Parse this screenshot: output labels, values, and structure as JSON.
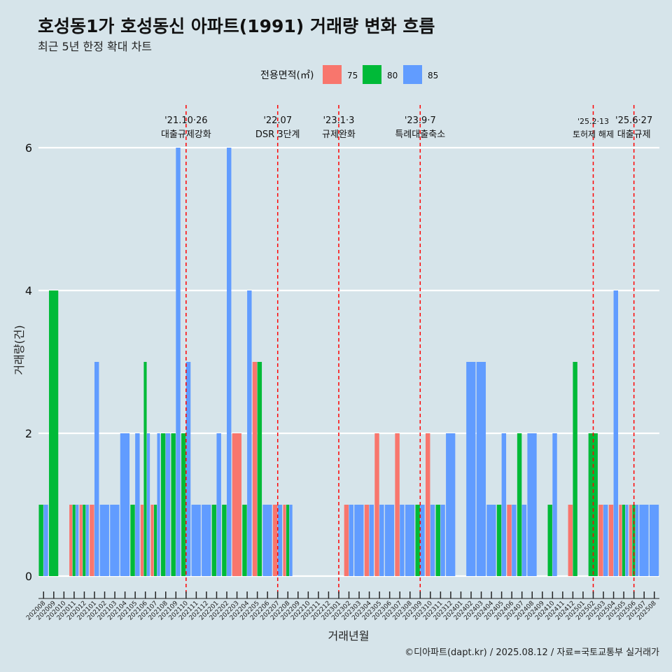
{
  "title": "호성동1가 호성동신 아파트(1991) 거래량 변화 흐름",
  "subtitle": "최근 5년 한정 확대 차트",
  "caption": "©디아파트(dapt.kr) / 2025.08.12 / 자료=국토교통부 실거래가",
  "colors": {
    "background": "#d6e4ea",
    "75": "#f8766d",
    "80": "#00ba38",
    "85": "#619cff",
    "event_line": "#ff0000",
    "grid": "#ffffff"
  },
  "chart_data": {
    "type": "bar",
    "xlabel": "거래년월",
    "ylabel": "거래량(건)",
    "ylim": [
      0,
      6
    ],
    "yticks": [
      0,
      2,
      4,
      6
    ],
    "legend": {
      "title": "전용면적(㎡)",
      "position": "top",
      "entries": [
        "75",
        "80",
        "85"
      ]
    },
    "categories": [
      "202008",
      "202009",
      "202010",
      "202011",
      "202012",
      "202101",
      "202102",
      "202103",
      "202104",
      "202105",
      "202106",
      "202107",
      "202108",
      "202109",
      "202110",
      "202111",
      "202112",
      "202201",
      "202202",
      "202203",
      "202204",
      "202205",
      "202206",
      "202207",
      "202208",
      "202209",
      "202210",
      "202211",
      "202212",
      "202301",
      "202302",
      "202303",
      "202304",
      "202305",
      "202306",
      "202307",
      "202308",
      "202309",
      "202310",
      "202311",
      "202312",
      "202401",
      "202402",
      "202403",
      "202404",
      "202405",
      "202406",
      "202407",
      "202408",
      "202409",
      "202410",
      "202411",
      "202412",
      "202501",
      "202502",
      "202503",
      "202504",
      "202505",
      "202506",
      "202507",
      "202508"
    ],
    "series": [
      {
        "name": "75",
        "values": [
          0,
          0,
          0,
          1,
          1,
          1,
          0,
          0,
          0,
          0,
          1,
          1,
          0,
          0,
          0,
          0,
          0,
          0,
          0,
          2,
          0,
          3,
          0,
          1,
          1,
          0,
          0,
          0,
          0,
          0,
          1,
          0,
          1,
          2,
          0,
          2,
          0,
          0,
          2,
          0,
          0,
          0,
          0,
          0,
          0,
          0,
          1,
          0,
          0,
          0,
          0,
          0,
          1,
          0,
          0,
          1,
          1,
          1,
          1,
          0,
          0
        ]
      },
      {
        "name": "80",
        "values": [
          1,
          4,
          0,
          1,
          1,
          0,
          0,
          0,
          0,
          1,
          3,
          1,
          2,
          2,
          2,
          0,
          0,
          1,
          1,
          0,
          1,
          3,
          0,
          0,
          1,
          0,
          0,
          0,
          0,
          0,
          0,
          0,
          0,
          0,
          0,
          0,
          0,
          1,
          0,
          1,
          0,
          0,
          0,
          0,
          0,
          1,
          0,
          2,
          0,
          0,
          1,
          0,
          3,
          0,
          2,
          0,
          0,
          1,
          1,
          0,
          0
        ]
      },
      {
        "name": "85",
        "values": [
          1,
          0,
          0,
          1,
          1,
          3,
          1,
          1,
          2,
          2,
          2,
          2,
          2,
          6,
          3,
          1,
          1,
          2,
          6,
          0,
          4,
          0,
          1,
          1,
          1,
          0,
          0,
          0,
          0,
          0,
          1,
          1,
          1,
          1,
          1,
          1,
          1,
          1,
          1,
          1,
          2,
          0,
          3,
          3,
          1,
          2,
          1,
          1,
          2,
          0,
          2,
          0,
          0,
          0,
          0,
          1,
          4,
          1,
          1,
          1,
          1
        ]
      }
    ],
    "events": [
      {
        "date": "'21.10·26",
        "label": "대출규제강화",
        "month": "202110"
      },
      {
        "date": "'22.07",
        "label": "DSR 3단계",
        "month": "202207"
      },
      {
        "date": "'23.1·3",
        "label": "규제완화",
        "month": "202301"
      },
      {
        "date": "'23.9·7",
        "label": "특례대출축소",
        "month": "202309"
      },
      {
        "date": "'25.2·13",
        "label": "토허제 해제",
        "month": "202502"
      },
      {
        "date": "'25.6·27",
        "label": "대출규제",
        "month": "202506"
      }
    ]
  }
}
